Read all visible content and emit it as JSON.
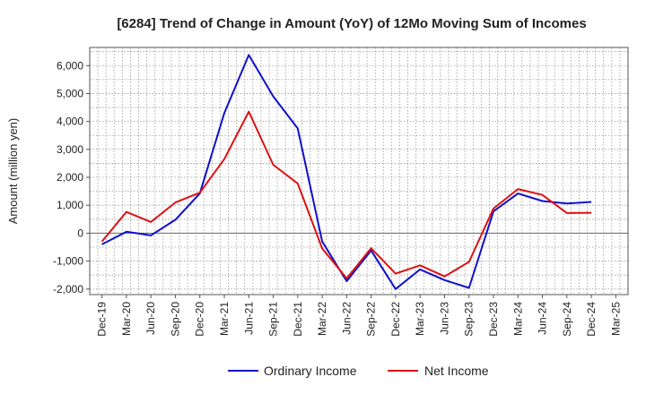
{
  "chart_data": {
    "type": "line",
    "title": "[6284]  Trend of Change in Amount (YoY) of 12Mo Moving Sum of Incomes",
    "xlabel": "",
    "ylabel": "Amount (million yen)",
    "ylim": [
      -2200,
      6650
    ],
    "yticks": [
      -2000,
      -1000,
      0,
      1000,
      2000,
      3000,
      4000,
      5000,
      6000
    ],
    "ytick_labels": [
      "-2,000",
      "-1,000",
      "0",
      "1,000",
      "2,000",
      "3,000",
      "4,000",
      "5,000",
      "6,000"
    ],
    "categories": [
      "Dec-19",
      "Mar-20",
      "Jun-20",
      "Sep-20",
      "Dec-20",
      "Mar-21",
      "Jun-21",
      "Sep-21",
      "Dec-21",
      "Mar-22",
      "Jun-22",
      "Sep-22",
      "Dec-22",
      "Mar-23",
      "Jun-23",
      "Sep-23",
      "Dec-23",
      "Mar-24",
      "Jun-24",
      "Sep-24",
      "Dec-24",
      "Mar-25"
    ],
    "grid": true,
    "legend_position": "bottom",
    "series": [
      {
        "name": "Ordinary Income",
        "color": "#1010cc",
        "values": [
          -400,
          50,
          -80,
          480,
          1420,
          4300,
          6380,
          4900,
          3750,
          -300,
          -1720,
          -620,
          -2000,
          -1300,
          -1680,
          -1960,
          780,
          1420,
          1150,
          1060,
          1120,
          null
        ]
      },
      {
        "name": "Net Income",
        "color": "#dd1111",
        "values": [
          -300,
          760,
          400,
          1100,
          1450,
          2650,
          4350,
          2450,
          1780,
          -550,
          -1620,
          -540,
          -1450,
          -1150,
          -1550,
          -1030,
          880,
          1580,
          1370,
          720,
          730,
          null
        ]
      }
    ]
  }
}
